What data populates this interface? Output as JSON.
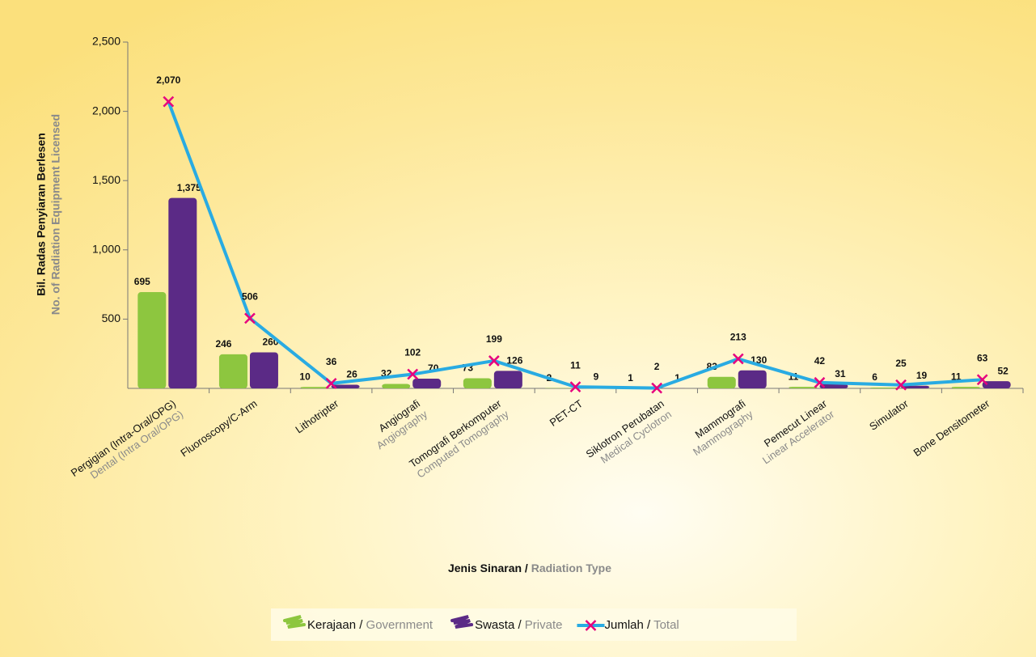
{
  "chart_data": {
    "type": "bar-line",
    "ylabel": "Bil. Radas Penyiaran Berlesen",
    "ylabel_en": "No. of Radiation Equipment Licensed",
    "xlabel": "Jenis Sinaran / Radiation Type",
    "categories": [
      {
        "label": "Pergigian (Intra-Oral/OPG)",
        "sublabel": "Dental (Intra Oral/OPG)"
      },
      {
        "label": "Fluoroscopy/C-Arm"
      },
      {
        "label": "Lithotripter"
      },
      {
        "label": "Angiografi",
        "sublabel": "Angiography"
      },
      {
        "label": "Tomografi Berkomputer",
        "sublabel": "Computed Tomography"
      },
      {
        "label": "PET-CT"
      },
      {
        "label": "Siklotron Perubatan",
        "sublabel": "Medical Cyclotron"
      },
      {
        "label": "Mammografi",
        "sublabel": "Mammography"
      },
      {
        "label": "Pemecut Linear",
        "sublabel": "Linear Accelerator"
      },
      {
        "label": "Simulator"
      },
      {
        "label": "Bone Densitometer"
      }
    ],
    "series": [
      {
        "name": "Kerajaan / Government",
        "kind": "bar",
        "color": "#8dc63f",
        "values": [
          695,
          246,
          10,
          32,
          73,
          2,
          1,
          83,
          11,
          6,
          11
        ]
      },
      {
        "name": "Swasta / Private",
        "kind": "bar",
        "color": "#5b2a86",
        "values": [
          1375,
          260,
          26,
          70,
          126,
          9,
          1,
          130,
          31,
          19,
          52
        ],
        "value_labels": [
          "1,375",
          "260",
          "26",
          "70",
          "126",
          "9",
          "1",
          "130",
          "31",
          "19",
          "52"
        ]
      },
      {
        "name": "Jumlah / Total",
        "kind": "line",
        "color": "#29abe2",
        "marker_color": "#e6007e",
        "values": [
          2070,
          506,
          36,
          102,
          199,
          11,
          2,
          213,
          42,
          25,
          63
        ],
        "value_labels": [
          "2,070",
          "506",
          "36",
          "102",
          "199",
          "11",
          "2",
          "213",
          "42",
          "25",
          "63"
        ]
      }
    ],
    "ylim": [
      0,
      2500
    ],
    "yticks": [
      500,
      {
        "value": 1000,
        "label": "1,000"
      },
      {
        "value": 1500,
        "label": "1,500"
      },
      {
        "value": 2000,
        "label": "2,000"
      },
      {
        "value": 2500,
        "label": "2,500"
      }
    ],
    "legend": "bottom"
  }
}
